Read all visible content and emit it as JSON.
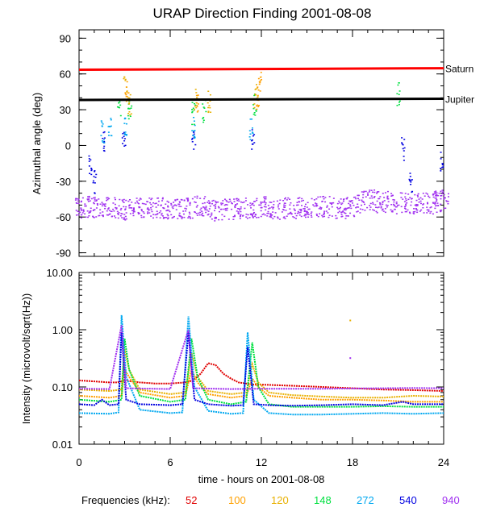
{
  "chart_data": [
    {
      "type": "scatter",
      "title": "URAP Direction Finding  2001-08-08",
      "xlabel": "",
      "ylabel": "Azimuthal angle (deg)",
      "xlim": [
        0,
        24
      ],
      "ylim": [
        -93,
        97
      ],
      "yticks": [
        {
          "v": 90,
          "label": "90"
        },
        {
          "v": 60,
          "label": "60"
        },
        {
          "v": 30,
          "label": "30"
        },
        {
          "v": 0,
          "label": "0"
        },
        {
          "v": -30,
          "label": "-30"
        },
        {
          "v": -60,
          "label": "-60"
        },
        {
          "v": -90,
          "label": "-90"
        }
      ],
      "reference_lines": [
        {
          "name": "Saturn",
          "color": "#ff0000",
          "x": [
            0,
            24
          ],
          "y": [
            63.5,
            64.8
          ]
        },
        {
          "name": "Jupiter",
          "color": "#000000",
          "x": [
            0,
            24
          ],
          "y": [
            38.2,
            39.2
          ]
        }
      ],
      "series": [
        {
          "name": "940",
          "color": "#a030f0",
          "x": [
            0.2,
            1.0,
            2.0,
            3.0,
            4.0,
            5.0,
            6.0,
            7.0,
            8.0,
            9.0,
            10.0,
            11.0,
            12.0,
            13.0,
            14.0,
            15.0,
            16.0,
            17.0,
            18.0,
            19.0,
            20.0,
            21.0,
            22.0,
            23.0,
            23.8
          ],
          "y": [
            -52,
            -51,
            -52,
            -53,
            -51,
            -52,
            -53,
            -52,
            -51,
            -54,
            -53,
            -52,
            -51,
            -53,
            -52,
            -52,
            -51,
            -52,
            -50,
            -45,
            -47,
            -48,
            -49,
            -48,
            -46
          ]
        },
        {
          "name": "540",
          "color": "#0000e0",
          "x": [
            0.7,
            1.0,
            1.6,
            2.9,
            7.5,
            11.4,
            21.3,
            21.8,
            23.8
          ],
          "y": [
            -15,
            -30,
            5,
            5,
            5,
            5,
            -2,
            -30,
            -15
          ]
        },
        {
          "name": "272",
          "color": "#00a8f0",
          "x": [
            1.5,
            2.0,
            3.0,
            7.5,
            11.3
          ],
          "y": [
            12,
            15,
            15,
            15,
            15
          ]
        },
        {
          "name": "148",
          "color": "#00e040",
          "x": [
            2.6,
            3.3,
            7.5,
            8.2,
            11.5,
            21.0
          ],
          "y": [
            35,
            28,
            28,
            30,
            35,
            44
          ]
        },
        {
          "name": "120",
          "color": "#e8b000",
          "x": [
            3.0,
            3.3,
            7.6,
            8.5,
            11.6
          ],
          "y": [
            48,
            35,
            40,
            38,
            42
          ]
        },
        {
          "name": "100",
          "color": "#ffa000",
          "x": [
            3.1,
            7.8,
            11.7,
            11.9
          ],
          "y": [
            45,
            35,
            40,
            55
          ]
        }
      ]
    },
    {
      "type": "line",
      "title": "",
      "xlabel": "time - hours on 2001-08-08",
      "ylabel": "Intensity (microvolt/sqrt(Hz))",
      "xlim": [
        0,
        24
      ],
      "ylim": [
        0.01,
        10
      ],
      "yscale": "log",
      "xticks": [
        {
          "v": 0,
          "label": "0"
        },
        {
          "v": 6,
          "label": "6"
        },
        {
          "v": 12,
          "label": "12"
        },
        {
          "v": 18,
          "label": "18"
        },
        {
          "v": 24,
          "label": "24"
        }
      ],
      "yticks": [
        {
          "v": 10,
          "label": "10.00"
        },
        {
          "v": 1,
          "label": "1.00"
        },
        {
          "v": 0.1,
          "label": "0.10"
        },
        {
          "v": 0.01,
          "label": "0.01"
        }
      ],
      "series": [
        {
          "name": "52",
          "color": "#e00000",
          "x": [
            0,
            1,
            2,
            2.5,
            3,
            4,
            5,
            6,
            7,
            7.5,
            8,
            8.5,
            9,
            9.5,
            10,
            10.5,
            11,
            11.5,
            12,
            14,
            16,
            18,
            20,
            22,
            24
          ],
          "y": [
            0.13,
            0.125,
            0.12,
            0.12,
            0.13,
            0.12,
            0.115,
            0.115,
            0.12,
            0.13,
            0.17,
            0.26,
            0.24,
            0.17,
            0.14,
            0.12,
            0.115,
            0.11,
            0.11,
            0.105,
            0.1,
            0.095,
            0.09,
            0.088,
            0.085
          ]
        },
        {
          "name": "100",
          "color": "#ffa000",
          "x": [
            0,
            2,
            2.8,
            3.0,
            3.3,
            4,
            6,
            7.0,
            7.4,
            7.8,
            8.5,
            10,
            11.0,
            11.4,
            11.8,
            12.5,
            14,
            16,
            18,
            20,
            22,
            24
          ],
          "y": [
            0.07,
            0.065,
            0.07,
            0.2,
            0.15,
            0.08,
            0.065,
            0.07,
            0.2,
            0.12,
            0.075,
            0.065,
            0.07,
            0.14,
            0.1,
            0.07,
            0.065,
            0.06,
            0.06,
            0.058,
            0.055,
            0.055
          ]
        },
        {
          "name": "120",
          "color": "#e8b000",
          "x": [
            0,
            2,
            2.8,
            3.0,
            3.3,
            4,
            6,
            7.0,
            7.4,
            7.8,
            8.5,
            10,
            11.0,
            11.4,
            11.8,
            12.5,
            14,
            16,
            18,
            20,
            22,
            24
          ],
          "y": [
            0.09,
            0.085,
            0.09,
            0.45,
            0.2,
            0.09,
            0.075,
            0.08,
            0.4,
            0.15,
            0.085,
            0.075,
            0.08,
            0.25,
            0.12,
            0.08,
            0.072,
            0.068,
            0.065,
            0.065,
            0.07,
            0.068
          ]
        },
        {
          "name": "148",
          "color": "#00e040",
          "x": [
            0,
            2,
            2.8,
            3.0,
            3.3,
            4,
            6,
            7.0,
            7.4,
            7.8,
            8.5,
            10,
            11.0,
            11.4,
            11.8,
            12.5,
            14,
            16,
            18,
            20,
            22,
            24
          ],
          "y": [
            0.06,
            0.055,
            0.06,
            0.7,
            0.2,
            0.07,
            0.055,
            0.06,
            0.7,
            0.15,
            0.06,
            0.05,
            0.055,
            0.6,
            0.1,
            0.05,
            0.045,
            0.045,
            0.045,
            0.046,
            0.045,
            0.045
          ]
        },
        {
          "name": "272",
          "color": "#00a8f0",
          "x": [
            0,
            2,
            2.6,
            2.8,
            3.1,
            4,
            6,
            6.8,
            7.2,
            7.6,
            8.5,
            10,
            10.8,
            11.1,
            11.5,
            12.5,
            14,
            16,
            18,
            20,
            22,
            24
          ],
          "y": [
            0.035,
            0.034,
            0.036,
            1.8,
            0.15,
            0.04,
            0.035,
            0.036,
            1.7,
            0.1,
            0.038,
            0.034,
            0.035,
            0.9,
            0.06,
            0.035,
            0.033,
            0.033,
            0.034,
            0.035,
            0.034,
            0.035
          ]
        },
        {
          "name": "540",
          "color": "#0000e0",
          "x": [
            0,
            1,
            1.5,
            2,
            2.6,
            2.8,
            3.1,
            4,
            6,
            6.8,
            7.2,
            7.6,
            8.5,
            10,
            10.8,
            11.1,
            11.5,
            12.5,
            14,
            16,
            18,
            20,
            21.3,
            22,
            24
          ],
          "y": [
            0.05,
            0.048,
            0.06,
            0.048,
            0.05,
            0.9,
            0.06,
            0.05,
            0.048,
            0.05,
            0.9,
            0.06,
            0.05,
            0.047,
            0.048,
            0.5,
            0.05,
            0.048,
            0.047,
            0.048,
            0.05,
            0.048,
            0.055,
            0.05,
            0.05
          ]
        },
        {
          "name": "940",
          "color": "#a030f0",
          "x": [
            0,
            2,
            2.8,
            3.1,
            6,
            7.2,
            7.5,
            10,
            12,
            16,
            18,
            20,
            22,
            24
          ],
          "y": [
            0.093,
            0.092,
            1.2,
            0.095,
            0.092,
            1.0,
            0.095,
            0.092,
            0.093,
            0.093,
            0.094,
            0.095,
            0.096,
            0.095
          ]
        }
      ],
      "annotations": [
        {
          "x": 17.8,
          "y": 1.5,
          "color": "#e8b000"
        },
        {
          "x": 17.8,
          "y": 0.33,
          "color": "#a030f0"
        }
      ]
    }
  ],
  "legend": {
    "label": "Frequencies (kHz):",
    "items": [
      {
        "label": "52",
        "color": "#e00000"
      },
      {
        "label": "100",
        "color": "#ffa000"
      },
      {
        "label": "120",
        "color": "#e8b000"
      },
      {
        "label": "148",
        "color": "#00e040"
      },
      {
        "label": "272",
        "color": "#00a8f0"
      },
      {
        "label": "540",
        "color": "#0000e0"
      },
      {
        "label": "940",
        "color": "#a030f0"
      }
    ]
  }
}
